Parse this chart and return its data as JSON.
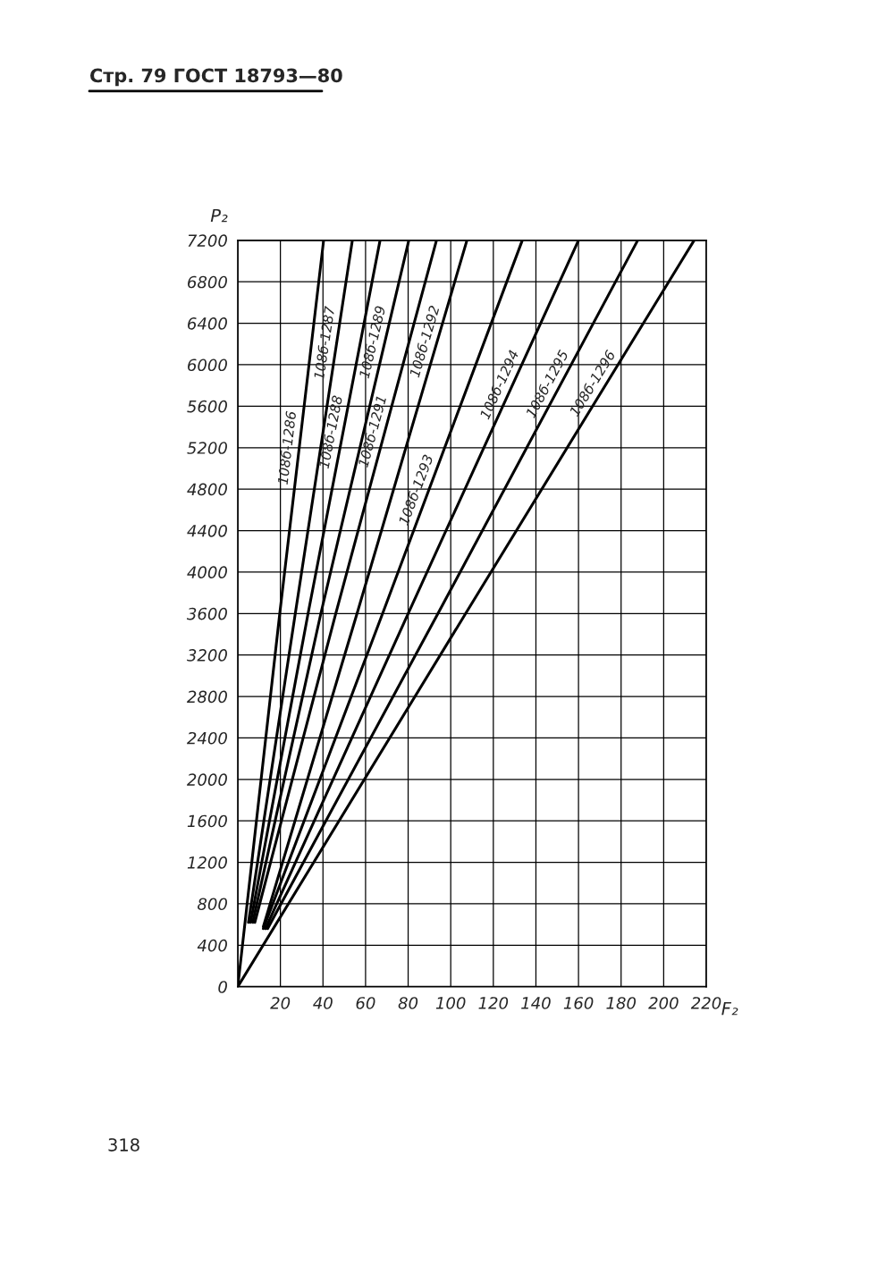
{
  "chart_data": {
    "type": "line",
    "title": "Стр. 79 ГОСТ 18793—80",
    "xlabel": "F₂",
    "ylabel": "P₂",
    "xlim": [
      0,
      220
    ],
    "ylim": [
      0,
      7200
    ],
    "xticks": [
      {
        "value": 0,
        "label": null
      },
      20,
      40,
      60,
      80,
      100,
      120,
      140,
      160,
      180,
      200,
      220
    ],
    "yticks": [
      0,
      400,
      800,
      1200,
      1600,
      2000,
      2400,
      2800,
      3200,
      3600,
      4000,
      4400,
      4800,
      5200,
      5600,
      6000,
      6400,
      6800,
      7200
    ],
    "grid": true,
    "legend": false,
    "line_style": "solid",
    "marker": "none",
    "annotations": [
      "318"
    ],
    "series": [
      {
        "name": "108б-1286",
        "color": "#000000",
        "x": [
          0,
          19.7,
          40.3
        ],
        "values": [
          0,
          3600,
          7200
        ]
      },
      {
        "name": "108б-1287",
        "color": "#000000",
        "x": [
          5,
          27,
          53.8
        ],
        "values": [
          620,
          3600,
          7200
        ]
      },
      {
        "name": "108б-1288",
        "color": "#000000",
        "x": [
          6,
          33,
          66.8
        ],
        "values": [
          620,
          3600,
          7200
        ]
      },
      {
        "name": "108б-1289",
        "color": "#000000",
        "x": [
          7,
          39,
          80.3
        ],
        "values": [
          620,
          3600,
          7200
        ]
      },
      {
        "name": "108б-1291",
        "color": "#000000",
        "x": [
          8,
          46,
          93.3
        ],
        "values": [
          620,
          3600,
          7200
        ]
      },
      {
        "name": "108б-1292",
        "color": "#000000",
        "x": [
          12,
          56,
          107.6
        ],
        "values": [
          580,
          3600,
          7200
        ]
      },
      {
        "name": "108б-1293",
        "color": "#000000",
        "x": [
          12,
          68,
          133.6
        ],
        "values": [
          560,
          3600,
          7200
        ]
      },
      {
        "name": "108б-1294",
        "color": "#000000",
        "x": [
          13,
          80,
          160
        ],
        "values": [
          560,
          3600,
          7200
        ]
      },
      {
        "name": "108б-1295",
        "color": "#000000",
        "x": [
          14,
          94,
          187.8
        ],
        "values": [
          560,
          3600,
          7200
        ]
      },
      {
        "name": "108б-1296",
        "color": "#000000",
        "x": [
          0,
          107,
          214.3
        ],
        "values": [
          0,
          3600,
          7200
        ]
      }
    ]
  }
}
